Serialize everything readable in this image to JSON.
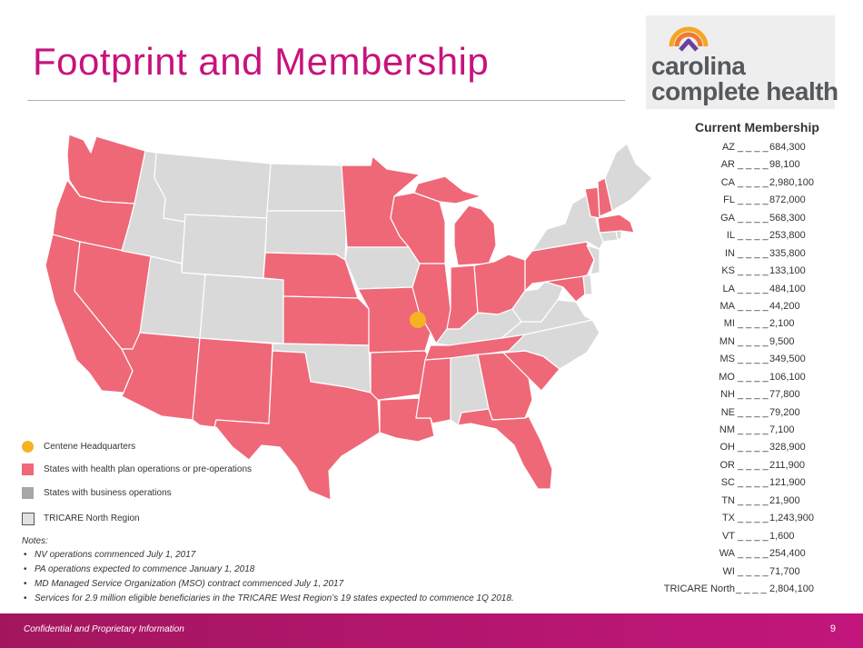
{
  "header": {
    "title": "Footprint and Membership"
  },
  "logo": {
    "line1": "carolina",
    "line2": "complete health",
    "icon": "chevron-arch-icon"
  },
  "membership": {
    "title": "Current Membership",
    "separator": "____",
    "rows": [
      {
        "state": "AZ",
        "value": "684,300"
      },
      {
        "state": "AR",
        "value": "98,100"
      },
      {
        "state": "CA",
        "value": "2,980,100"
      },
      {
        "state": "FL",
        "value": "872,000"
      },
      {
        "state": "GA",
        "value": "568,300"
      },
      {
        "state": "IL",
        "value": "253,800"
      },
      {
        "state": "IN",
        "value": "335,800"
      },
      {
        "state": "KS",
        "value": "133,100"
      },
      {
        "state": "LA",
        "value": "484,100"
      },
      {
        "state": "MA",
        "value": "44,200"
      },
      {
        "state": "MI",
        "value": "2,100"
      },
      {
        "state": "MN",
        "value": "9,500"
      },
      {
        "state": "MS",
        "value": "349,500"
      },
      {
        "state": "MO",
        "value": "106,100"
      },
      {
        "state": "NH",
        "value": "77,800"
      },
      {
        "state": "NE",
        "value": "79,200"
      },
      {
        "state": "NM",
        "value": "7,100"
      },
      {
        "state": "OH",
        "value": "328,900"
      },
      {
        "state": "OR",
        "value": "211,900"
      },
      {
        "state": "SC",
        "value": "121,900"
      },
      {
        "state": "TN",
        "value": "21,900"
      },
      {
        "state": "TX",
        "value": "1,243,900"
      },
      {
        "state": "VT",
        "value": "1,600"
      },
      {
        "state": "WA",
        "value": "254,400"
      },
      {
        "state": "WI",
        "value": "71,700"
      }
    ],
    "total": {
      "state": "TRICARE North",
      "value": "2,804,100"
    }
  },
  "legend": [
    {
      "label": "Centene Headquarters",
      "color": "#f5b324",
      "shape": "circle"
    },
    {
      "label": "States with health plan operations or pre-operations",
      "color": "#ef6878",
      "shape": "square"
    },
    {
      "label": "States with business operations",
      "color": "#a6a6a6",
      "shape": "square"
    },
    {
      "label": "TRICARE North Region",
      "color": "#e2e2e2",
      "shape": "square-outlined"
    }
  ],
  "map": {
    "health_plan_color": "#ef6878",
    "tricare_color": "#d9d9d9",
    "border_color": "#ffffff",
    "hq_color": "#f5b324",
    "health_plan_states": [
      "WA",
      "OR",
      "CA",
      "NV",
      "AZ",
      "NM",
      "TX",
      "NE",
      "KS",
      "MN",
      "WI",
      "MI",
      "IL",
      "IN",
      "OH",
      "MO",
      "AR",
      "LA",
      "MS",
      "TN",
      "GA",
      "SC",
      "FL",
      "PA",
      "MD",
      "NH",
      "VT",
      "MA"
    ],
    "tricare_states": [
      "ID",
      "MT",
      "WY",
      "UT",
      "CO",
      "ND",
      "SD",
      "IA",
      "OK",
      "AL",
      "KY",
      "WV",
      "VA",
      "NC",
      "NY",
      "ME",
      "NJ",
      "DE",
      "CT",
      "RI"
    ]
  },
  "notes": {
    "heading": "Notes:",
    "items": [
      "NV operations commenced July 1, 2017",
      "PA operations expected to commence January 1, 2018",
      "MD Managed Service Organization (MSO) contract commenced July 1, 2017",
      "Services for 2.9 million eligible beneficiaries in the TRICARE West Region’s 19 states expected to commence 1Q 2018."
    ]
  },
  "footer": {
    "confidential": "Confidential and Proprietary Information",
    "page": "9"
  }
}
